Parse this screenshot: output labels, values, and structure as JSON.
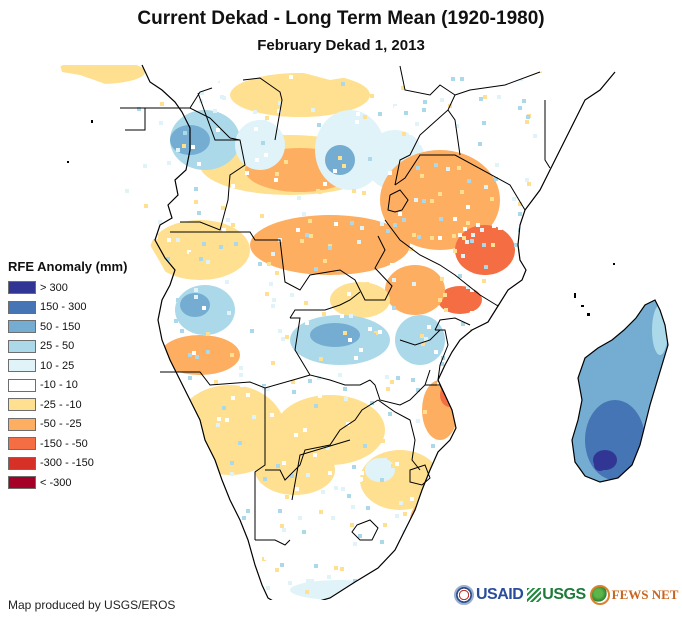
{
  "title": "Current Dekad - Long Term Mean (1920-1980)",
  "subtitle": "February Dekad 1, 2013",
  "legend": {
    "title": "RFE Anomaly (mm)",
    "items": [
      {
        "label": "> 300",
        "color": "#313695"
      },
      {
        "label": "150 - 300",
        "color": "#4575b4"
      },
      {
        "label": "50 - 150",
        "color": "#74add1"
      },
      {
        "label": "25 - 50",
        "color": "#abd9e9"
      },
      {
        "label": "10 - 25",
        "color": "#e0f3f8"
      },
      {
        "label": "-10 - 10",
        "color": "#ffffff"
      },
      {
        "label": "-25 - -10",
        "color": "#fee090"
      },
      {
        "label": "-50 - -25",
        "color": "#fdae61"
      },
      {
        "label": "-150 - -50",
        "color": "#f46d43"
      },
      {
        "label": "-300 - -150",
        "color": "#d73027"
      },
      {
        "label": "< -300",
        "color": "#a50026"
      }
    ]
  },
  "credit": "Map produced by USGS/EROS",
  "logos": {
    "usaid": "USAID",
    "usgs": "USGS",
    "fews": "FEWS NET"
  },
  "map": {
    "region": "Southern and Central Africa with Madagascar",
    "regions": [
      {
        "name": "west-africa-coast",
        "anomaly_class": "-25 - -10"
      },
      {
        "name": "gabon-congo",
        "anomaly_class": "25 - 50"
      },
      {
        "name": "central-african-republic",
        "anomaly_class": "-25 - -10"
      },
      {
        "name": "drc-north",
        "anomaly_class": "-50 - -25"
      },
      {
        "name": "drc-northeast",
        "anomaly_class": "50 - 150"
      },
      {
        "name": "ethiopia-somalia-kenya-north",
        "anomaly_class": "-10 - 10"
      },
      {
        "name": "tanzania",
        "anomaly_class": "-50 - -25"
      },
      {
        "name": "tanzania-south",
        "anomaly_class": "-150 - -50"
      },
      {
        "name": "angola-north",
        "anomaly_class": "25 - 50"
      },
      {
        "name": "angola-south",
        "anomaly_class": "-50 - -25"
      },
      {
        "name": "zambia",
        "anomaly_class": "50 - 150"
      },
      {
        "name": "malawi-mozambique-north",
        "anomaly_class": "25 - 50"
      },
      {
        "name": "mozambique-central",
        "anomaly_class": "-150 - -50"
      },
      {
        "name": "namibia-botswana",
        "anomaly_class": "-25 - -10"
      },
      {
        "name": "south-africa",
        "anomaly_class": "-10 - 10"
      },
      {
        "name": "madagascar",
        "anomaly_class": "50 - 150"
      },
      {
        "name": "madagascar-south",
        "anomaly_class": "150 - 300"
      }
    ]
  }
}
